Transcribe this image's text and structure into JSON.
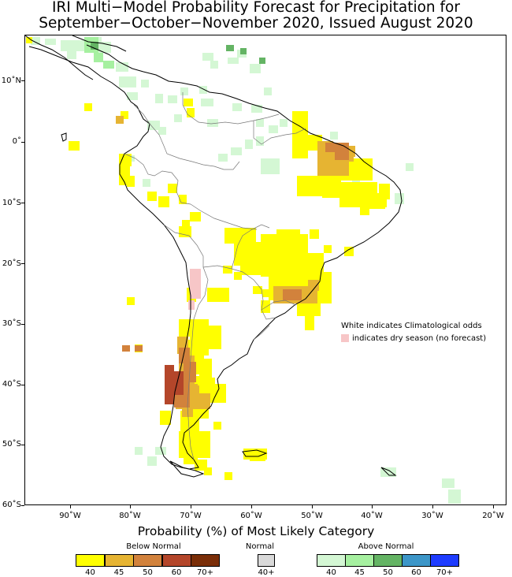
{
  "title": {
    "line1": "IRI Multi−Model Probability Forecast for Precipitation for",
    "line2": "September−October−November 2020, Issued August 2020"
  },
  "axes": {
    "y_labels": [
      "10˚N",
      "0˚",
      "10˚S",
      "20˚S",
      "30˚S",
      "40˚S",
      "50˚S",
      "60˚S"
    ],
    "x_labels": [
      "90˚W",
      "80˚W",
      "70˚W",
      "60˚W",
      "50˚W",
      "40˚W",
      "30˚W",
      "20˚W"
    ]
  },
  "note": {
    "line1": "White indicates Climatological odds",
    "line2": "indicates dry season (no forecast)"
  },
  "legend": {
    "title": "Probability (%) of Most Likely Category",
    "below_label": "Below Normal",
    "normal_label": "Normal",
    "above_label": "Above Normal",
    "below": [
      {
        "label": "40",
        "color": "#ffff00"
      },
      {
        "label": "45",
        "color": "#e6b432"
      },
      {
        "label": "50",
        "color": "#d2823c"
      },
      {
        "label": "60",
        "color": "#b4462a"
      },
      {
        "label": "70+",
        "color": "#7a2e08"
      }
    ],
    "normal": {
      "label": "40+",
      "color": "#d9d9d9"
    },
    "above": [
      {
        "label": "40",
        "color": "#d4f7d4"
      },
      {
        "label": "45",
        "color": "#a6f0a0"
      },
      {
        "label": "50",
        "color": "#64b464"
      },
      {
        "label": "60",
        "color": "#3c96c8"
      },
      {
        "label": "70+",
        "color": "#1e3cff"
      }
    ],
    "dry_season_color": "#f7c6c7"
  }
}
